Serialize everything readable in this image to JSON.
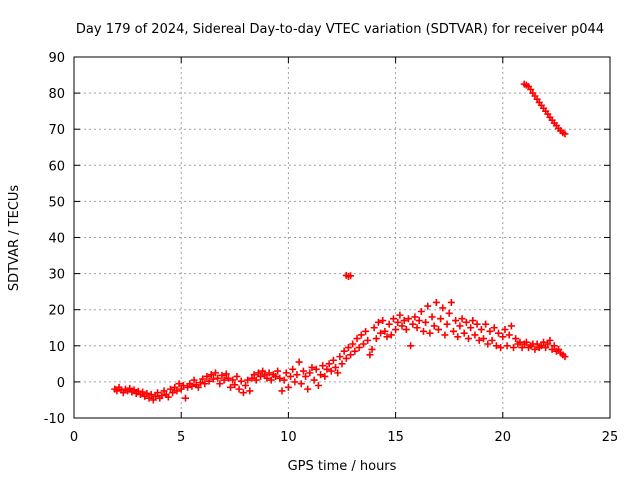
{
  "chart_data": {
    "type": "scatter",
    "title": "Day 179 of 2024, Sidereal Day-to-day VTEC variation (SDTVAR) for receiver p044",
    "xlabel": "GPS time / hours",
    "ylabel": "SDTVAR / TECUs",
    "xlim": [
      0,
      25
    ],
    "ylim": [
      -10,
      90
    ],
    "xticks": [
      "0",
      "5",
      "10",
      "15",
      "20",
      "25"
    ],
    "yticks": [
      "-10",
      "0",
      "10",
      "20",
      "30",
      "40",
      "50",
      "60",
      "70",
      "80",
      "90"
    ],
    "grid": true,
    "marker": "plus",
    "color": "#ff0000",
    "series": [
      {
        "name": "SDTVAR",
        "points": [
          [
            1.9,
            -2.0
          ],
          [
            2.0,
            -2.5
          ],
          [
            2.1,
            -1.5
          ],
          [
            2.2,
            -2.2
          ],
          [
            2.3,
            -3.0
          ],
          [
            2.4,
            -2.0
          ],
          [
            2.5,
            -2.5
          ],
          [
            2.6,
            -1.8
          ],
          [
            2.7,
            -2.8
          ],
          [
            2.8,
            -2.2
          ],
          [
            2.9,
            -3.2
          ],
          [
            3.0,
            -2.6
          ],
          [
            3.1,
            -3.5
          ],
          [
            3.2,
            -2.8
          ],
          [
            3.3,
            -4.0
          ],
          [
            3.4,
            -3.2
          ],
          [
            3.5,
            -4.5
          ],
          [
            3.6,
            -3.5
          ],
          [
            3.7,
            -5.0
          ],
          [
            3.8,
            -4.0
          ],
          [
            3.9,
            -3.0
          ],
          [
            4.0,
            -4.5
          ],
          [
            4.1,
            -3.8
          ],
          [
            4.2,
            -2.5
          ],
          [
            4.3,
            -3.5
          ],
          [
            4.4,
            -4.2
          ],
          [
            4.5,
            -2.0
          ],
          [
            4.6,
            -3.0
          ],
          [
            4.7,
            -1.5
          ],
          [
            4.8,
            -2.5
          ],
          [
            4.9,
            -0.5
          ],
          [
            5.0,
            -2.0
          ],
          [
            5.1,
            -1.0
          ],
          [
            5.2,
            -4.5
          ],
          [
            5.3,
            -1.5
          ],
          [
            5.4,
            -0.5
          ],
          [
            5.5,
            -1.2
          ],
          [
            5.6,
            0.5
          ],
          [
            5.7,
            -0.8
          ],
          [
            5.8,
            -1.5
          ],
          [
            5.9,
            -0.2
          ],
          [
            6.0,
            0.8
          ],
          [
            6.1,
            -0.5
          ],
          [
            6.2,
            1.5
          ],
          [
            6.3,
            0.2
          ],
          [
            6.4,
            2.0
          ],
          [
            6.5,
            0.8
          ],
          [
            6.6,
            2.5
          ],
          [
            6.7,
            1.0
          ],
          [
            6.8,
            -0.5
          ],
          [
            6.9,
            1.8
          ],
          [
            7.0,
            0.5
          ],
          [
            7.1,
            2.2
          ],
          [
            7.2,
            1.0
          ],
          [
            7.3,
            -1.5
          ],
          [
            7.4,
            0.5
          ],
          [
            7.5,
            -0.8
          ],
          [
            7.6,
            1.5
          ],
          [
            7.7,
            -2.0
          ],
          [
            7.8,
            0.2
          ],
          [
            7.9,
            -3.0
          ],
          [
            8.0,
            -1.0
          ],
          [
            8.1,
            0.5
          ],
          [
            8.2,
            -2.5
          ],
          [
            8.3,
            1.0
          ],
          [
            8.4,
            2.0
          ],
          [
            8.5,
            0.5
          ],
          [
            8.6,
            2.5
          ],
          [
            8.7,
            1.5
          ],
          [
            8.8,
            3.0
          ],
          [
            8.9,
            2.0
          ],
          [
            9.0,
            1.0
          ],
          [
            9.1,
            2.5
          ],
          [
            9.2,
            0.5
          ],
          [
            9.3,
            2.0
          ],
          [
            9.4,
            1.5
          ],
          [
            9.5,
            3.0
          ],
          [
            9.6,
            1.0
          ],
          [
            9.7,
            -2.5
          ],
          [
            9.8,
            0.5
          ],
          [
            9.9,
            2.5
          ],
          [
            10.0,
            -1.5
          ],
          [
            10.1,
            1.5
          ],
          [
            10.2,
            3.5
          ],
          [
            10.3,
            0.0
          ],
          [
            10.4,
            2.0
          ],
          [
            10.5,
            5.5
          ],
          [
            10.6,
            -0.5
          ],
          [
            10.7,
            3.0
          ],
          [
            10.8,
            1.5
          ],
          [
            10.9,
            -2.0
          ],
          [
            11.0,
            2.5
          ],
          [
            11.1,
            4.0
          ],
          [
            11.2,
            0.5
          ],
          [
            11.3,
            3.5
          ],
          [
            11.4,
            -1.0
          ],
          [
            11.5,
            2.0
          ],
          [
            11.6,
            4.5
          ],
          [
            11.7,
            1.5
          ],
          [
            11.8,
            3.5
          ],
          [
            11.9,
            5.0
          ],
          [
            12.0,
            3.0
          ],
          [
            12.1,
            6.0
          ],
          [
            12.2,
            4.0
          ],
          [
            12.3,
            2.5
          ],
          [
            12.4,
            7.0
          ],
          [
            12.5,
            5.0
          ],
          [
            12.6,
            8.5
          ],
          [
            12.7,
            6.5
          ],
          [
            12.8,
            9.5
          ],
          [
            12.9,
            7.5
          ],
          [
            13.0,
            10.5
          ],
          [
            13.1,
            8.5
          ],
          [
            13.2,
            12.0
          ],
          [
            13.3,
            9.5
          ],
          [
            13.4,
            13.0
          ],
          [
            13.5,
            10.5
          ],
          [
            13.6,
            14.0
          ],
          [
            13.7,
            11.5
          ],
          [
            13.8,
            7.5
          ],
          [
            13.9,
            9.0
          ],
          [
            14.0,
            15.0
          ],
          [
            14.1,
            12.0
          ],
          [
            14.2,
            16.5
          ],
          [
            14.3,
            13.5
          ],
          [
            14.4,
            17.0
          ],
          [
            14.5,
            14.0
          ],
          [
            14.6,
            12.5
          ],
          [
            14.7,
            16.0
          ],
          [
            14.8,
            13.0
          ],
          [
            14.9,
            17.5
          ],
          [
            15.0,
            14.5
          ],
          [
            15.1,
            16.5
          ],
          [
            15.2,
            18.5
          ],
          [
            15.3,
            15.5
          ],
          [
            15.4,
            17.0
          ],
          [
            15.5,
            14.5
          ],
          [
            15.6,
            17.5
          ],
          [
            15.7,
            10.0
          ],
          [
            15.8,
            16.0
          ],
          [
            15.9,
            18.0
          ],
          [
            16.0,
            15.0
          ],
          [
            16.1,
            17.0
          ],
          [
            16.2,
            19.5
          ],
          [
            16.3,
            14.0
          ],
          [
            16.4,
            16.5
          ],
          [
            16.5,
            21.0
          ],
          [
            16.6,
            13.5
          ],
          [
            16.7,
            18.0
          ],
          [
            16.8,
            15.5
          ],
          [
            16.9,
            22.0
          ],
          [
            17.0,
            14.5
          ],
          [
            17.1,
            17.5
          ],
          [
            17.2,
            20.5
          ],
          [
            17.3,
            13.0
          ],
          [
            17.4,
            16.0
          ],
          [
            17.5,
            19.0
          ],
          [
            17.6,
            22.0
          ],
          [
            17.7,
            14.0
          ],
          [
            17.8,
            17.0
          ],
          [
            17.9,
            12.5
          ],
          [
            18.0,
            15.5
          ],
          [
            18.1,
            17.5
          ],
          [
            18.2,
            13.5
          ],
          [
            18.3,
            16.5
          ],
          [
            18.4,
            12.0
          ],
          [
            18.5,
            15.0
          ],
          [
            18.6,
            17.0
          ],
          [
            18.7,
            13.0
          ],
          [
            18.8,
            16.0
          ],
          [
            18.9,
            11.5
          ],
          [
            19.0,
            14.5
          ],
          [
            19.1,
            12.0
          ],
          [
            19.2,
            16.0
          ],
          [
            19.3,
            10.5
          ],
          [
            19.4,
            14.0
          ],
          [
            19.5,
            11.5
          ],
          [
            19.6,
            15.0
          ],
          [
            19.7,
            10.0
          ],
          [
            19.8,
            13.5
          ],
          [
            19.9,
            9.5
          ],
          [
            20.0,
            12.5
          ],
          [
            20.1,
            14.5
          ],
          [
            20.2,
            10.0
          ],
          [
            20.3,
            13.0
          ],
          [
            20.4,
            15.5
          ],
          [
            20.5,
            9.5
          ],
          [
            20.6,
            12.0
          ],
          [
            20.7,
            10.5
          ],
          [
            20.8,
            11.0
          ],
          [
            20.9,
            9.5
          ],
          [
            21.0,
            10.5
          ],
          [
            21.1,
            11.0
          ],
          [
            21.2,
            9.5
          ],
          [
            21.3,
            10.0
          ],
          [
            21.4,
            10.5
          ],
          [
            21.5,
            9.0
          ],
          [
            21.6,
            10.5
          ],
          [
            21.7,
            9.5
          ],
          [
            21.8,
            10.0
          ],
          [
            21.9,
            11.0
          ],
          [
            22.0,
            9.5
          ],
          [
            22.1,
            10.5
          ],
          [
            22.2,
            11.5
          ],
          [
            22.3,
            9.0
          ],
          [
            22.4,
            10.0
          ],
          [
            22.5,
            8.5
          ],
          [
            22.6,
            9.0
          ],
          [
            22.7,
            8.0
          ],
          [
            22.8,
            7.5
          ],
          [
            22.9,
            7.0
          ],
          [
            12.7,
            29.5
          ],
          [
            12.8,
            29.2
          ],
          [
            12.9,
            29.4
          ],
          [
            21.0,
            82.5
          ],
          [
            21.1,
            82.2
          ],
          [
            21.2,
            81.8
          ],
          [
            21.3,
            81.0
          ],
          [
            21.4,
            80.0
          ],
          [
            21.5,
            79.2
          ],
          [
            21.6,
            78.3
          ],
          [
            21.7,
            77.4
          ],
          [
            21.8,
            76.6
          ],
          [
            21.9,
            75.8
          ],
          [
            22.0,
            75.0
          ],
          [
            22.1,
            74.2
          ],
          [
            22.2,
            73.3
          ],
          [
            22.3,
            72.5
          ],
          [
            22.4,
            71.7
          ],
          [
            22.5,
            71.0
          ],
          [
            22.6,
            70.2
          ],
          [
            22.7,
            69.6
          ],
          [
            22.8,
            69.0
          ],
          [
            22.9,
            68.7
          ]
        ]
      }
    ]
  }
}
